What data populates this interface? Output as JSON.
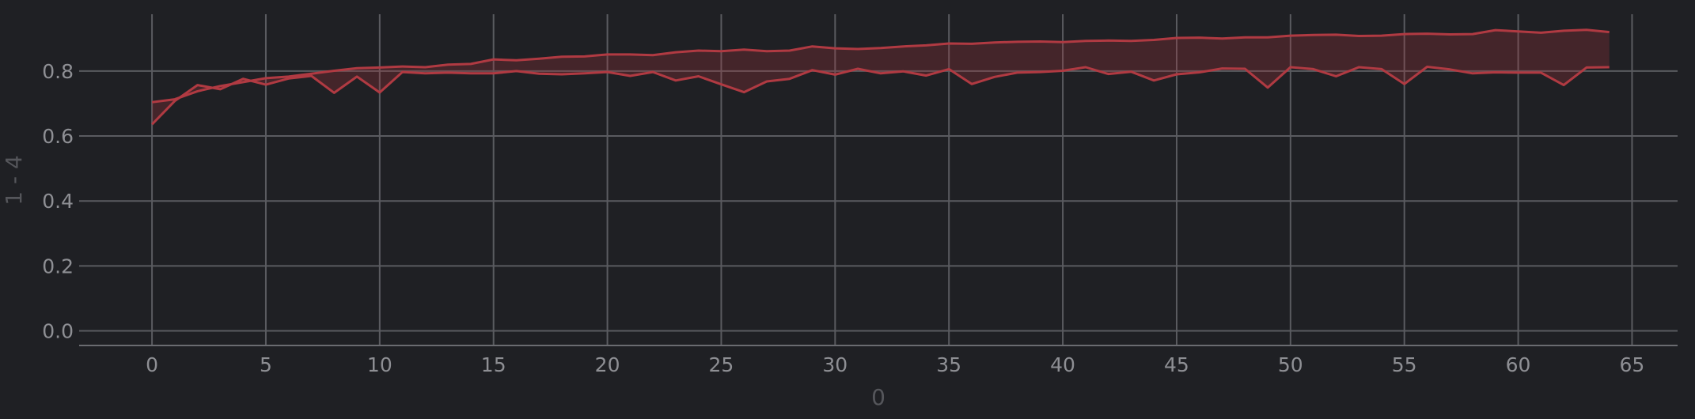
{
  "chart_data": {
    "type": "area",
    "xlabel": "0",
    "ylabel": "1 - 4",
    "xlim": [
      -3.2,
      67.0
    ],
    "ylim": [
      -0.045,
      0.975
    ],
    "x_ticks": [
      0,
      5,
      10,
      15,
      20,
      25,
      30,
      35,
      40,
      45,
      50,
      55,
      60,
      65
    ],
    "x_tick_labels": [
      "0",
      "5",
      "10",
      "15",
      "20",
      "25",
      "30",
      "35",
      "40",
      "45",
      "50",
      "55",
      "60",
      "65"
    ],
    "y_ticks": [
      0.0,
      0.2,
      0.4,
      0.6,
      0.8
    ],
    "y_tick_labels": [
      "0.0",
      "0.2",
      "0.4",
      "0.6",
      "0.8"
    ],
    "grid": true,
    "colors": {
      "background": "#1f2024",
      "series": "#b03a42",
      "fill": "#b5343c"
    },
    "x": [
      0,
      1,
      2,
      3,
      4,
      5,
      6,
      7,
      8,
      9,
      10,
      11,
      12,
      13,
      14,
      15,
      16,
      17,
      18,
      19,
      20,
      21,
      22,
      23,
      24,
      25,
      26,
      27,
      28,
      29,
      30,
      31,
      32,
      33,
      34,
      35,
      36,
      37,
      38,
      39,
      40,
      41,
      42,
      43,
      44,
      45,
      46,
      47,
      48,
      49,
      50,
      51,
      52,
      53,
      54,
      55,
      56,
      57,
      58,
      59,
      60,
      61,
      62,
      63,
      64
    ],
    "series": [
      {
        "values": [
          0.704,
          0.713,
          0.738,
          0.754,
          0.766,
          0.778,
          0.783,
          0.792,
          0.801,
          0.809,
          0.811,
          0.814,
          0.812,
          0.82,
          0.822,
          0.836,
          0.833,
          0.838,
          0.844,
          0.845,
          0.851,
          0.851,
          0.849,
          0.858,
          0.863,
          0.861,
          0.866,
          0.861,
          0.863,
          0.876,
          0.87,
          0.868,
          0.871,
          0.876,
          0.879,
          0.885,
          0.884,
          0.888,
          0.89,
          0.891,
          0.889,
          0.893,
          0.894,
          0.893,
          0.896,
          0.902,
          0.903,
          0.9,
          0.904,
          0.904,
          0.909,
          0.911,
          0.912,
          0.908,
          0.909,
          0.914,
          0.915,
          0.913,
          0.914,
          0.926,
          0.922,
          0.918,
          0.924,
          0.927,
          0.92
        ]
      },
      {
        "values": [
          0.636,
          0.708,
          0.757,
          0.744,
          0.776,
          0.758,
          0.777,
          0.785,
          0.733,
          0.783,
          0.734,
          0.797,
          0.793,
          0.795,
          0.793,
          0.793,
          0.8,
          0.792,
          0.79,
          0.793,
          0.797,
          0.785,
          0.797,
          0.771,
          0.784,
          0.759,
          0.735,
          0.768,
          0.776,
          0.803,
          0.789,
          0.807,
          0.793,
          0.799,
          0.786,
          0.806,
          0.76,
          0.782,
          0.795,
          0.797,
          0.801,
          0.812,
          0.791,
          0.798,
          0.771,
          0.79,
          0.796,
          0.808,
          0.807,
          0.749,
          0.812,
          0.806,
          0.784,
          0.812,
          0.806,
          0.76,
          0.813,
          0.805,
          0.793,
          0.796,
          0.795,
          0.795,
          0.757,
          0.811,
          0.812
        ]
      }
    ]
  }
}
